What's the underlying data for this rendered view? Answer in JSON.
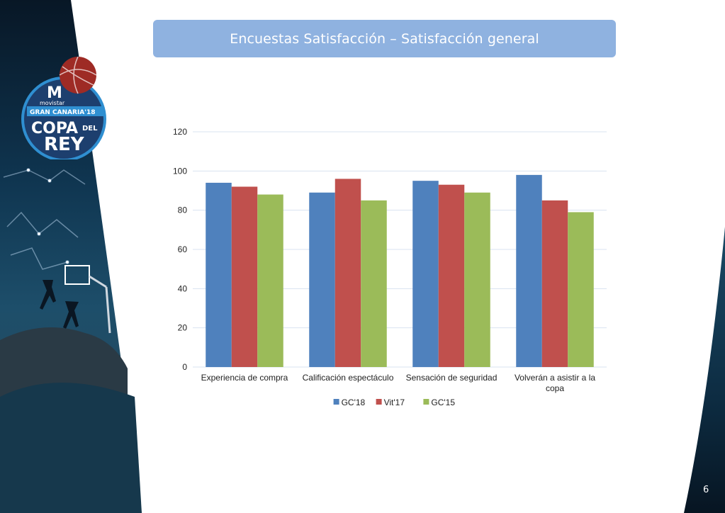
{
  "slide": {
    "title": "Encuestas Satisfacción – Satisfacción general",
    "page_number": "6"
  },
  "logo": {
    "brand": "movistar",
    "line1": "GRAN CANARIA'18",
    "line2": "COPA",
    "line2b": "DEL",
    "line3": "REY"
  },
  "colors": {
    "title_bg": "#8fb2e0",
    "gc18": "#4f81bd",
    "vit17": "#c0504d",
    "gc15": "#9bbb59",
    "grid": "#d9e3f0"
  },
  "chart_data": {
    "type": "bar",
    "categories": [
      [
        "Experiencia de compra"
      ],
      [
        "Calificación espectáculo"
      ],
      [
        "Sensación de seguridad"
      ],
      [
        "Volverán a asistir a la",
        "copa"
      ]
    ],
    "series": [
      {
        "name": "GC'18",
        "color": "#4f81bd",
        "values": [
          94,
          89,
          95,
          98
        ]
      },
      {
        "name": "Vit'17",
        "color": "#c0504d",
        "values": [
          92,
          96,
          93,
          85
        ]
      },
      {
        "name": "GC'15",
        "color": "#9bbb59",
        "values": [
          88,
          85,
          89,
          79
        ]
      }
    ],
    "ylim": [
      0,
      120
    ],
    "yticks": [
      0,
      20,
      40,
      60,
      80,
      100,
      120
    ],
    "grid": true,
    "legend": "bottom"
  }
}
